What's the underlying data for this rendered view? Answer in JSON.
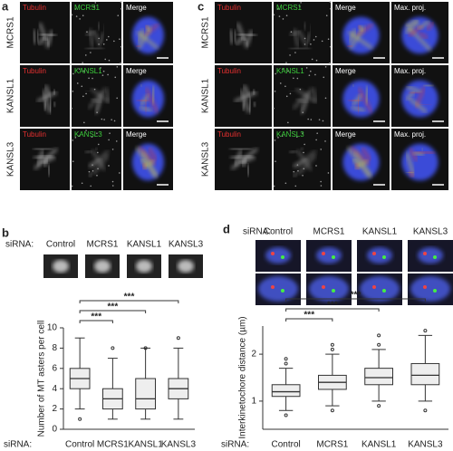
{
  "panel_a": {
    "letter": "a",
    "rows": [
      "MCRS1",
      "KANSL1",
      "KANSL3"
    ],
    "channels": [
      [
        "Tubulin",
        "MCRS1",
        "Merge"
      ],
      [
        "Tubulin",
        "KANSL1",
        "Merge"
      ],
      [
        "Tubulin",
        "KANSL3",
        "Merge"
      ]
    ]
  },
  "panel_c": {
    "letter": "c",
    "rows": [
      "MCRS1",
      "KANSL1",
      "KANSL3"
    ],
    "channels": [
      [
        "Tubulin",
        "MCRS1",
        "Merge",
        "Max. proj."
      ],
      [
        "Tubulin",
        "KANSL1",
        "Merge",
        "Max. proj."
      ],
      [
        "Tubulin",
        "KANSL3",
        "Merge",
        "Max. proj."
      ]
    ]
  },
  "panel_b": {
    "letter": "b",
    "sirna": "siRNA:",
    "conditions": [
      "Control",
      "MCRS1",
      "KANSL1",
      "KANSL3"
    ]
  },
  "panel_d": {
    "letter": "d",
    "sirna": "siRNA:",
    "conditions": [
      "Control",
      "MCRS1",
      "KANSL1",
      "KANSL3"
    ]
  },
  "chart_data": [
    {
      "type": "box",
      "ylabel": "Number of MT asters per cell",
      "xlabel": "siRNA:",
      "categories": [
        "Control",
        "MCRS1",
        "KANSL1",
        "KANSL3"
      ],
      "boxes": [
        {
          "min": 2,
          "q1": 4,
          "median": 5,
          "q3": 6,
          "max": 9,
          "outliers": [
            1
          ]
        },
        {
          "min": 1,
          "q1": 2,
          "median": 3,
          "q3": 4,
          "max": 7,
          "outliers": [
            8
          ]
        },
        {
          "min": 1,
          "q1": 2,
          "median": 3,
          "q3": 5,
          "max": 8,
          "outliers": [
            8
          ]
        },
        {
          "min": 1,
          "q1": 3,
          "median": 4,
          "q3": 5,
          "max": 8,
          "outliers": [
            9
          ]
        }
      ],
      "ylim": [
        0,
        10
      ],
      "yticks": [
        0,
        2,
        4,
        6,
        8,
        10
      ],
      "significance": [
        {
          "pair": [
            "Control",
            "MCRS1"
          ],
          "label": "***"
        },
        {
          "pair": [
            "Control",
            "KANSL1"
          ],
          "label": "***"
        },
        {
          "pair": [
            "Control",
            "KANSL3"
          ],
          "label": "***"
        }
      ]
    },
    {
      "type": "box",
      "ylabel": "Interkinetochore distance (µm)",
      "xlabel": "siRNA:",
      "categories": [
        "Control",
        "MCRS1",
        "KANSL1",
        "KANSL3"
      ],
      "boxes": [
        {
          "min": 0.8,
          "q1": 1.1,
          "median": 1.2,
          "q3": 1.35,
          "max": 1.7,
          "outliers": [
            0.7,
            1.8,
            1.9
          ]
        },
        {
          "min": 0.9,
          "q1": 1.25,
          "median": 1.4,
          "q3": 1.55,
          "max": 2.0,
          "outliers": [
            0.8,
            2.1,
            2.2
          ]
        },
        {
          "min": 1.0,
          "q1": 1.35,
          "median": 1.5,
          "q3": 1.7,
          "max": 2.1,
          "outliers": [
            0.9,
            2.2,
            2.4
          ]
        },
        {
          "min": 1.0,
          "q1": 1.35,
          "median": 1.55,
          "q3": 1.8,
          "max": 2.4,
          "outliers": [
            0.8,
            2.5
          ]
        }
      ],
      "ylim": [
        0.4,
        2.6
      ],
      "yticks": [
        1,
        2
      ],
      "significance": [
        {
          "pair": [
            "Control",
            "MCRS1"
          ],
          "label": "***"
        },
        {
          "pair": [
            "Control",
            "KANSL1"
          ],
          "label": "***"
        },
        {
          "pair": [
            "Control",
            "KANSL3"
          ],
          "label": "***"
        }
      ]
    }
  ]
}
